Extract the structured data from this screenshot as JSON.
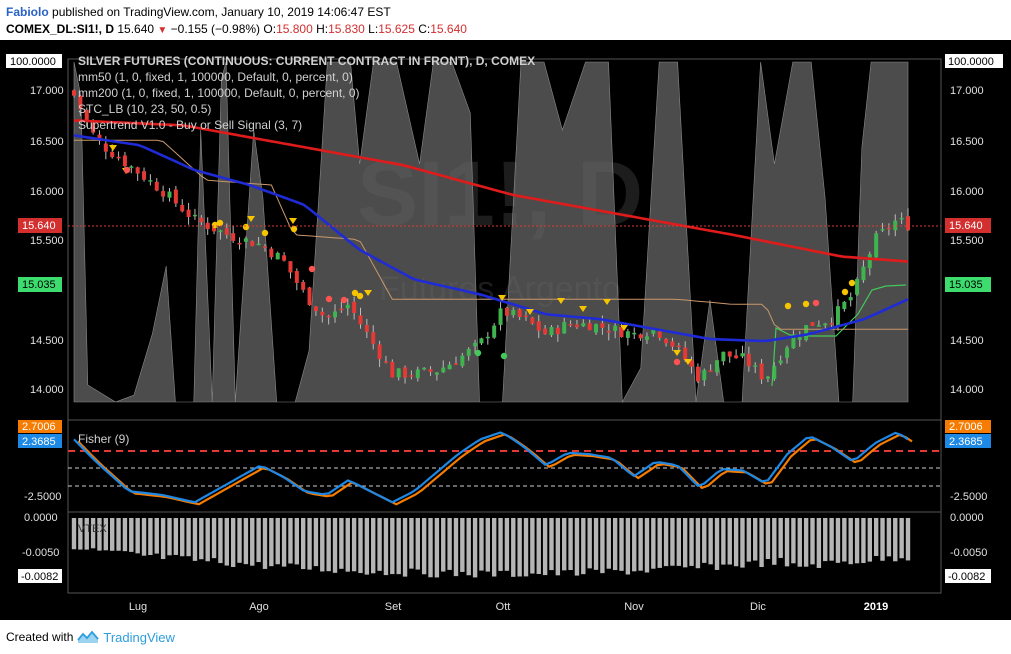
{
  "header": {
    "author": "Fabiolo",
    "published": "published on TradingView.com, January 10, 2019 14:06:47 EST",
    "symbol": "COMEX_DL:SI1!, D",
    "last": "15.640",
    "change": "−0.155 (−0.98%)",
    "o_label": "O:",
    "o_val": "15.800",
    "h_label": "H:",
    "h_val": "15.830",
    "l_label": "L:",
    "l_val": "15.625",
    "c_label": "C:",
    "c_val": "15.640",
    "down_color": "#d32f2f"
  },
  "chart": {
    "watermark_symbol": "SI1!, D",
    "watermark_name": "Futures Argento",
    "legends": [
      "SILVER FUTURES (CONTINUOUS: CURRENT CONTRACT IN FRONT), D, COMEX",
      "mm50 (1, 0, fixed, 1, 100000, Default, 0, percent, 0)",
      "mm200 (1, 0, fixed, 1, 100000, Default, 0, percent, 0)",
      "STC_LB (10, 23, 50, 0.5)",
      "Supertrend V1.0 - Buy or Sell Signal (3, 7)"
    ],
    "price_ticks": [
      "17.000",
      "16.500",
      "16.000",
      "15.500",
      "14.500",
      "14.000"
    ],
    "top_scale": "100.0000",
    "last_price_tag": "15.640",
    "supertrend_tag": "15.035",
    "fisher_label": "Fisher (9)",
    "fisher_tag_1": "2.7006",
    "fisher_tag_2": "2.3685",
    "fisher_tick": "-2.5000",
    "lower_label": "VTEX",
    "lower_ticks": [
      "0.0000",
      "-0.0050"
    ],
    "lower_tag": "-0.0082",
    "months": [
      "Lug",
      "Ago",
      "Set",
      "Ott",
      "Nov",
      "Dic",
      "2019"
    ],
    "colors": {
      "ma50": "#1f2bd6",
      "ma200": "#e01b1b",
      "supertrend": "#43c95a",
      "stc_fill": "#6b6b6b",
      "fisher_a": "#1e88e5",
      "fisher_b": "#f57c00",
      "up": "#3fb34f",
      "down": "#e53935"
    }
  },
  "footer": {
    "created": "Created with",
    "brand": "TradingView"
  }
}
